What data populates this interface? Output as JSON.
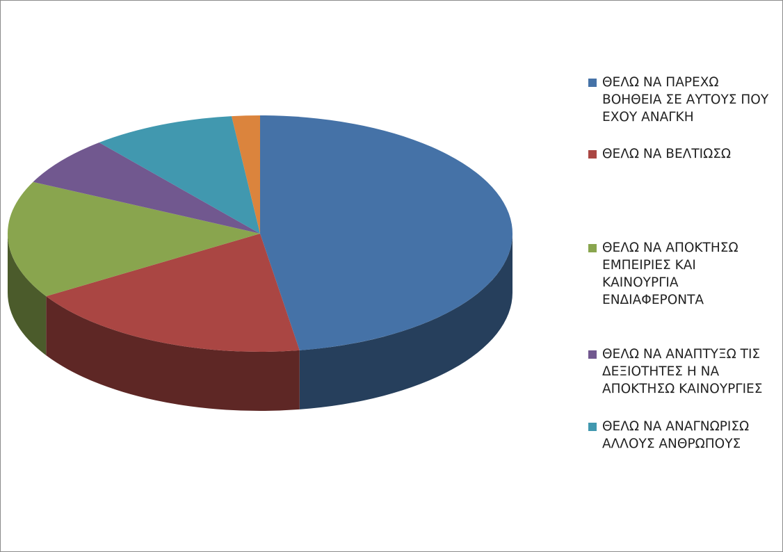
{
  "chart_data": {
    "type": "pie3d",
    "categories": [
      "ΘΕΛΩ ΝΑ ΠΑΡΕΧΩ ΒΟΗΘΕΙΑ ΣΕ ΑΥΤΟΥΣ ΠΟΥ ΕΧΟΥ ΑΝΑΓΚΗ",
      "ΘΕΛΩ ΝΑ ΒΕΛΤΙΩΣΩ",
      "ΘΕΛΩ ΝΑ ΑΠΟΚΤΗΣΩ ΕΜΠΕΙΡΙΕΣ ΚΑΙ ΚΑΙΝΟΥΡΓΙΑ ΕΝΔΙΑΦΕΡΟΝΤΑ",
      "ΘΕΛΩ ΝΑ ΑΝΑΠΤΥΞΩ ΤΙΣ ΔΕΞΙΟΤΗΤΕΣ Η ΝΑ ΑΠΟΚΤΗΣΩ ΚΑΙΝΟΥΡΓΙΕΣ",
      "ΘΕΛΩ ΝΑ ΑΝΑΓΝΩΡΙΣΩ ΑΛΛΟΥΣ ΑΝΘΡΩΠΟΥΣ",
      null
    ],
    "values": [
      47.5,
      18.6,
      16.1,
      6.8,
      9.2,
      1.8
    ],
    "colors": [
      "#4572a7",
      "#aa4643",
      "#89a54e",
      "#71588f",
      "#4198af",
      "#db843d"
    ],
    "legend": "right"
  }
}
